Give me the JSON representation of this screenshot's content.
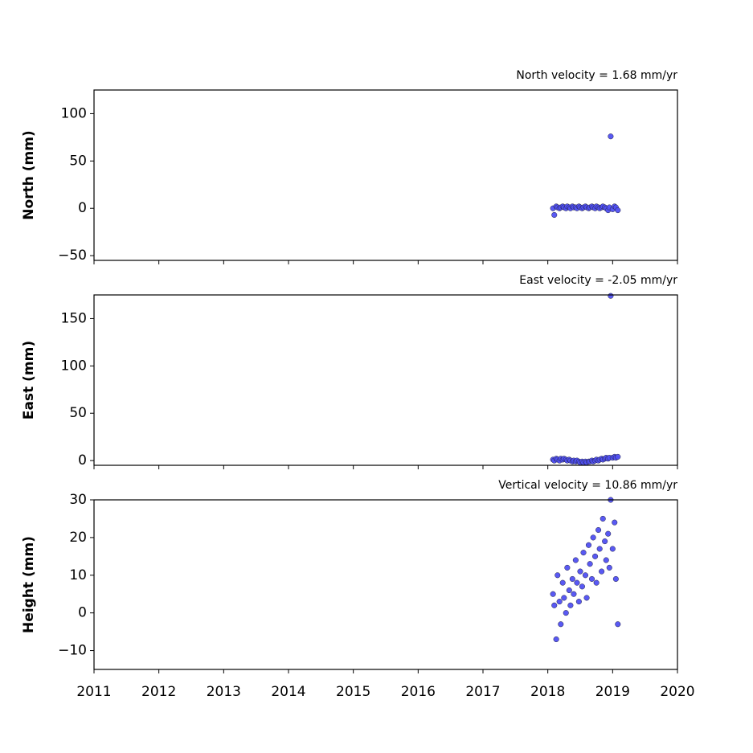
{
  "chart_data": [
    {
      "type": "scatter",
      "title": "North velocity = 1.68 mm/yr",
      "ylabel": "North (mm)",
      "x": [
        2018.08,
        2018.1,
        2018.13,
        2018.15,
        2018.18,
        2018.2,
        2018.23,
        2018.25,
        2018.28,
        2018.3,
        2018.33,
        2018.35,
        2018.38,
        2018.4,
        2018.43,
        2018.45,
        2018.48,
        2018.5,
        2018.53,
        2018.55,
        2018.58,
        2018.6,
        2018.63,
        2018.65,
        2018.68,
        2018.7,
        2018.73,
        2018.75,
        2018.78,
        2018.8,
        2018.83,
        2018.85,
        2018.88,
        2018.9,
        2018.93,
        2018.95,
        2018.97,
        2019.0,
        2019.03,
        2019.05,
        2019.08
      ],
      "values": [
        0,
        -7,
        2,
        1,
        0,
        1,
        2,
        1,
        0,
        2,
        1,
        0,
        2,
        1,
        1,
        0,
        2,
        1,
        0,
        1,
        2,
        1,
        0,
        1,
        2,
        1,
        0,
        2,
        1,
        0,
        1,
        2,
        1,
        0,
        -2,
        1,
        76,
        -1,
        2,
        1,
        -2
      ],
      "color": "#5050f2",
      "xlim": [
        2011,
        2020
      ],
      "ylim": [
        -55,
        125
      ],
      "yticks": [
        {
          "value": -50,
          "label": "−50"
        },
        0,
        50,
        100
      ]
    },
    {
      "type": "scatter",
      "title": "East velocity = -2.05 mm/yr",
      "ylabel": "East (mm)",
      "x": [
        2018.08,
        2018.1,
        2018.13,
        2018.15,
        2018.18,
        2018.2,
        2018.23,
        2018.25,
        2018.28,
        2018.3,
        2018.33,
        2018.35,
        2018.38,
        2018.4,
        2018.43,
        2018.45,
        2018.48,
        2018.5,
        2018.53,
        2018.55,
        2018.58,
        2018.6,
        2018.63,
        2018.65,
        2018.68,
        2018.7,
        2018.73,
        2018.75,
        2018.78,
        2018.8,
        2018.83,
        2018.85,
        2018.88,
        2018.9,
        2018.93,
        2018.95,
        2018.97,
        2019.0,
        2019.03,
        2019.05,
        2019.08
      ],
      "values": [
        1,
        0,
        2,
        1,
        0,
        2,
        1,
        2,
        1,
        0,
        1,
        0,
        -1,
        0,
        -1,
        0,
        -1,
        -2,
        -1,
        -2,
        -1,
        -2,
        -1,
        -1,
        0,
        -1,
        0,
        1,
        0,
        1,
        2,
        1,
        2,
        3,
        2,
        3,
        174,
        3,
        4,
        3,
        4
      ],
      "color": "#5050f2",
      "xlim": [
        2011,
        2020
      ],
      "ylim": [
        -5,
        175
      ],
      "yticks": [
        0,
        50,
        100,
        150
      ]
    },
    {
      "type": "scatter",
      "title": "Vertical velocity = 10.86 mm/yr",
      "ylabel": "Height (mm)",
      "x": [
        2018.08,
        2018.1,
        2018.13,
        2018.15,
        2018.18,
        2018.2,
        2018.23,
        2018.25,
        2018.28,
        2018.3,
        2018.33,
        2018.35,
        2018.38,
        2018.4,
        2018.43,
        2018.45,
        2018.48,
        2018.5,
        2018.53,
        2018.55,
        2018.58,
        2018.6,
        2018.63,
        2018.65,
        2018.68,
        2018.7,
        2018.73,
        2018.75,
        2018.78,
        2018.8,
        2018.83,
        2018.85,
        2018.88,
        2018.9,
        2018.93,
        2018.95,
        2018.97,
        2019.0,
        2019.03,
        2019.05,
        2019.08
      ],
      "values": [
        5,
        2,
        -7,
        10,
        3,
        -3,
        8,
        4,
        0,
        12,
        6,
        2,
        9,
        5,
        14,
        8,
        3,
        11,
        7,
        16,
        10,
        4,
        18,
        13,
        9,
        20,
        15,
        8,
        22,
        17,
        11,
        25,
        19,
        14,
        21,
        12,
        30,
        17,
        24,
        9,
        -3
      ],
      "color": "#5050f2",
      "xlim": [
        2011,
        2020
      ],
      "ylim": [
        -15,
        30
      ],
      "yticks": [
        {
          "value": -10,
          "label": "−10"
        },
        0,
        10,
        20,
        30
      ],
      "xticks": [
        2011,
        2012,
        2013,
        2014,
        2015,
        2016,
        2017,
        2018,
        2019,
        2020
      ]
    }
  ]
}
